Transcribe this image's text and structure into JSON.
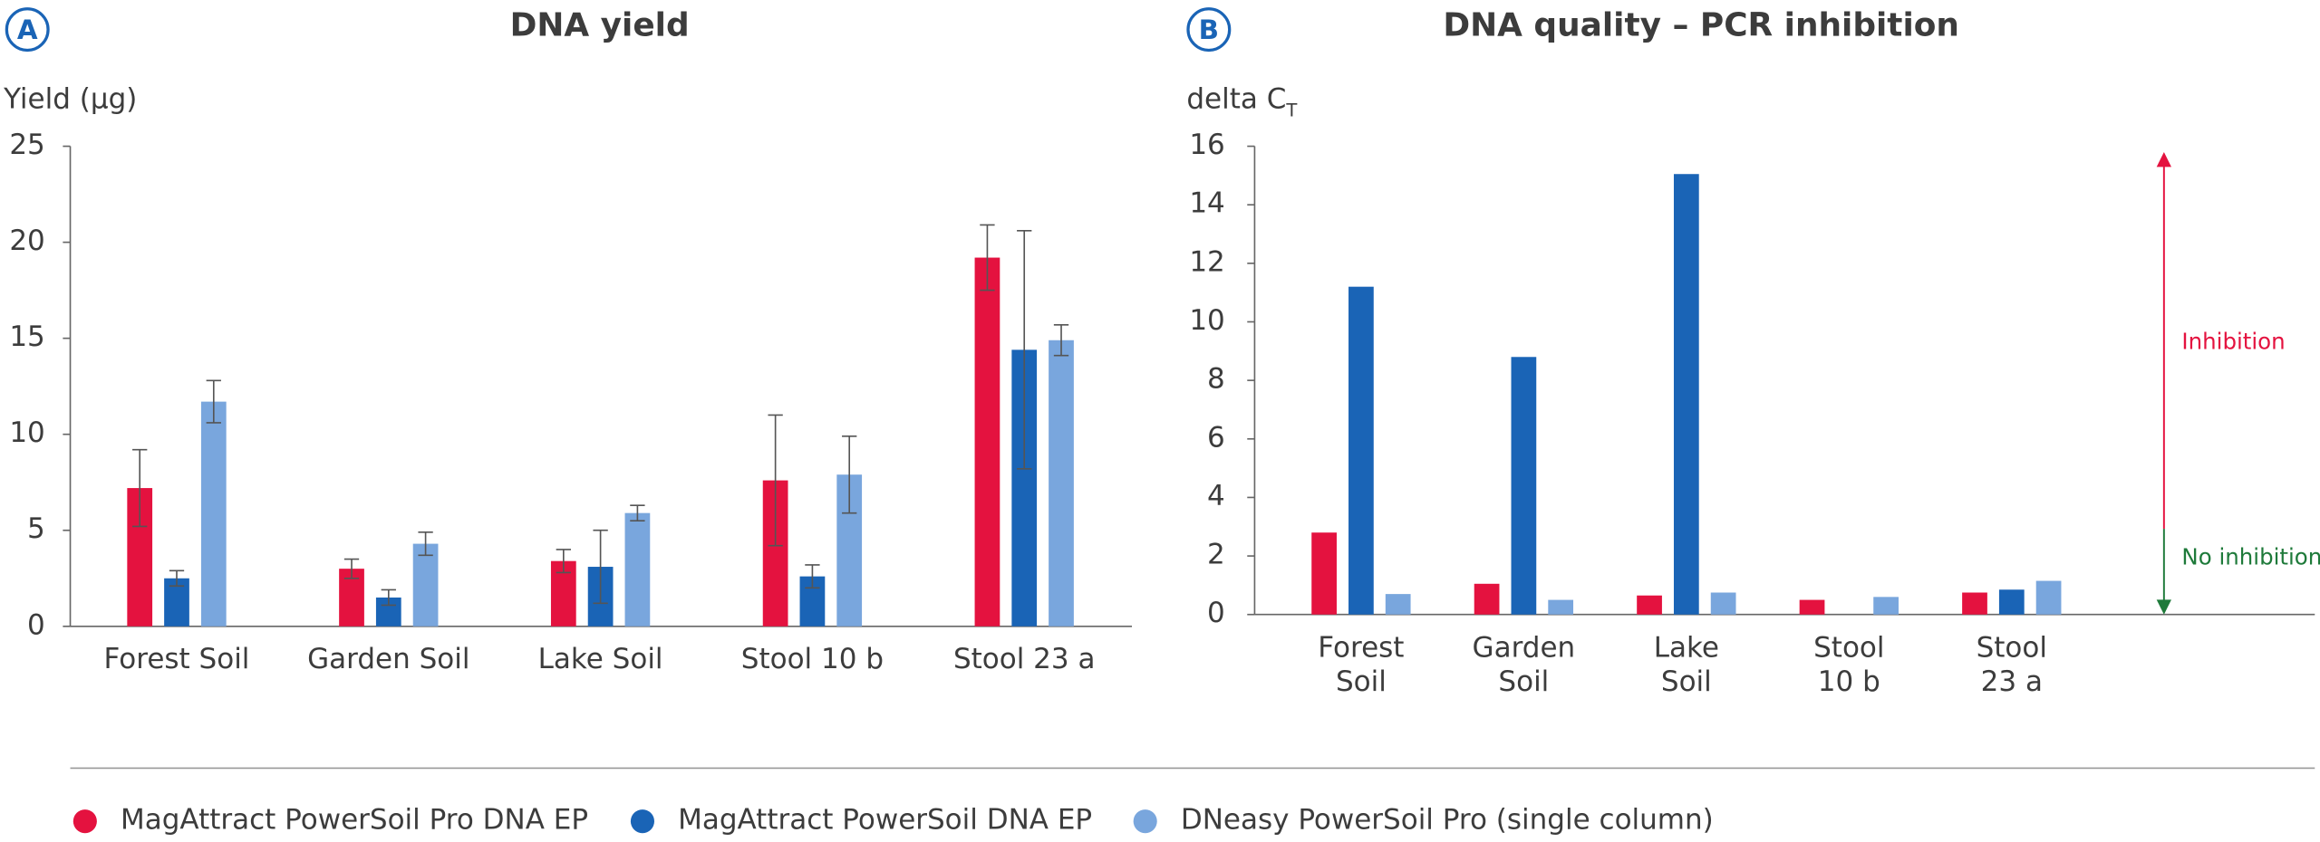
{
  "chart_data": [
    {
      "type": "bar",
      "panel_label": "A",
      "title": "DNA yield",
      "y_label": "Yield (µg)",
      "categories": [
        "Forest Soil",
        "Garden Soil",
        "Lake Soil",
        "Stool 10 b",
        "Stool 23 a"
      ],
      "series": [
        {
          "color": "#e4123f",
          "values": [
            7.2,
            3.0,
            3.4,
            7.6,
            19.2
          ],
          "errors": [
            2.0,
            0.5,
            0.6,
            3.4,
            1.7
          ]
        },
        {
          "color": "#1a64b6",
          "values": [
            2.5,
            1.5,
            3.1,
            2.6,
            14.4
          ],
          "errors": [
            0.4,
            0.4,
            1.9,
            0.6,
            6.2
          ]
        },
        {
          "color": "#79a6dd",
          "values": [
            11.7,
            4.3,
            5.9,
            7.9,
            14.9
          ],
          "errors": [
            1.1,
            0.6,
            0.4,
            2.0,
            0.8
          ]
        }
      ],
      "ylim": [
        0,
        25
      ],
      "yticks": [
        0,
        5,
        10,
        15,
        20,
        25
      ],
      "grid": false
    },
    {
      "type": "bar",
      "panel_label": "B",
      "title": "DNA quality – PCR inhibition",
      "y_label": "delta C",
      "y_label_sub": "T",
      "categories": [
        "Forest Soil",
        "Garden Soil",
        "Lake Soil",
        "Stool 10 b",
        "Stool 23 a"
      ],
      "series": [
        {
          "color": "#e4123f",
          "values": [
            2.8,
            1.05,
            0.65,
            0.5,
            0.75
          ]
        },
        {
          "color": "#1a64b6",
          "values": [
            11.2,
            8.8,
            15.05,
            null,
            0.85
          ]
        },
        {
          "color": "#79a6dd",
          "values": [
            0.7,
            0.5,
            0.75,
            0.6,
            1.15
          ]
        }
      ],
      "ylim": [
        0,
        16
      ],
      "yticks": [
        0,
        2,
        4,
        6,
        8,
        10,
        12,
        14,
        16
      ],
      "grid": false,
      "annotations": [
        {
          "text": "Inhibition",
          "color": "#e4123f"
        },
        {
          "text": "No inhibition",
          "color": "#1e7a3a"
        }
      ]
    }
  ],
  "legend": [
    {
      "name": "MagAttract PowerSoil Pro DNA EP",
      "color": "#e4123f"
    },
    {
      "name": "MagAttract PowerSoil DNA EP",
      "color": "#1a64b6"
    },
    {
      "name": "DNeasy PowerSoil Pro (single column)",
      "color": "#79a6dd"
    }
  ]
}
